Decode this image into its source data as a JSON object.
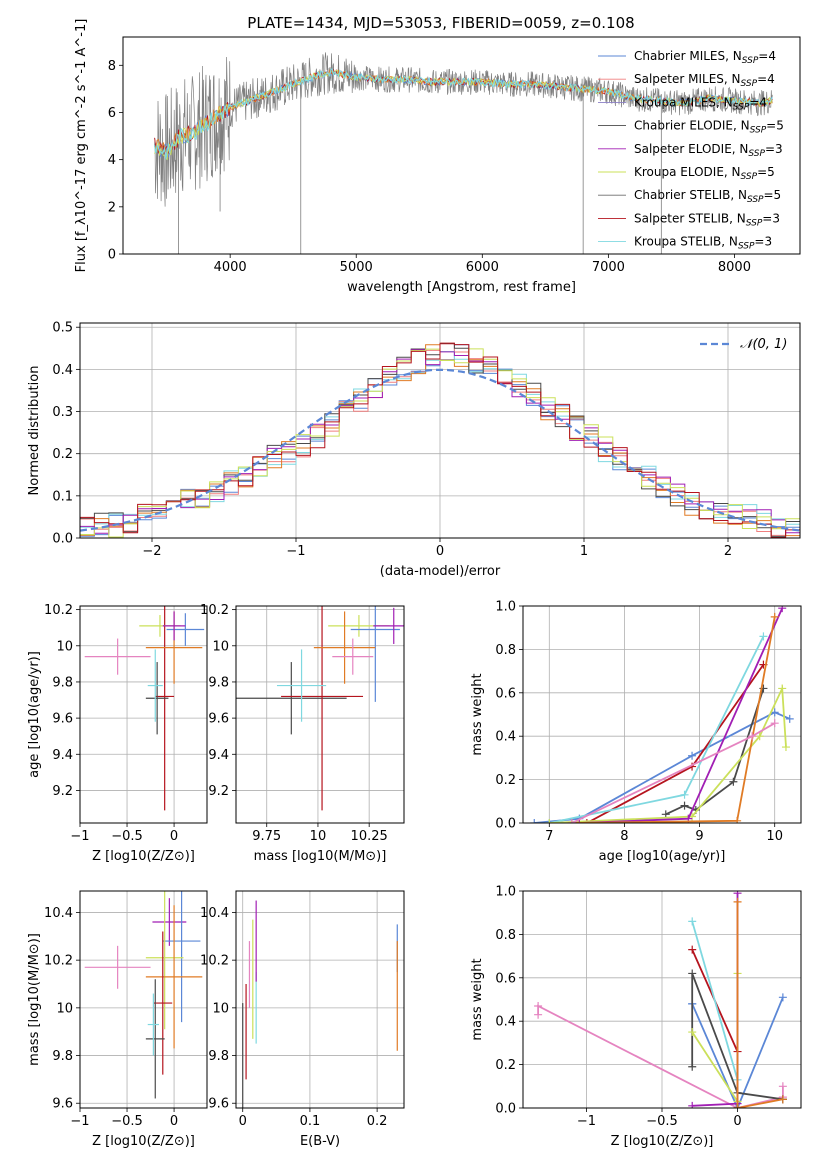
{
  "figure": {
    "title": "PLATE=1434, MJD=53053, FIBERID=0059, z=0.108"
  },
  "colors": {
    "chabrier_miles": "#5b87d6",
    "salpeter_miles": "#f07f7f",
    "kroupa_miles": "#8a7ec4",
    "chabrier_elodie": "#4a4a4a",
    "salpeter_elodie": "#a11fb4",
    "kroupa_elodie": "#cbe05a",
    "chabrier_stelib": "#6e6e6e",
    "salpeter_stelib": "#b5141e",
    "kroupa_stelib": "#7fd8e0",
    "spectrum": "#7f7f7f",
    "orange": "#e07b25",
    "pink": "#e584c0",
    "normal_curve": "#5b87d6"
  },
  "chart_data": [
    {
      "type": "line",
      "id": "spectrum",
      "xlabel": "wavelength [Angstrom, rest frame]",
      "ylabel": "Flux [f_λ10^-17 erg cm^-2 s^-1 A^-1]",
      "xlim": [
        3150,
        8520
      ],
      "ylim": [
        0,
        9.2
      ],
      "xticks": [
        4000,
        5000,
        6000,
        7000,
        8000
      ],
      "yticks": [
        0,
        2,
        4,
        6,
        8
      ],
      "legend_position": "right",
      "legend": [
        "Chabrier MILES, N_SSP=4",
        "Salpeter MILES, N_SSP=4",
        "Kroupa MILES, N_SSP=4",
        "Chabrier ELODIE, N_SSP=5",
        "Salpeter ELODIE, N_SSP=3",
        "Kroupa ELODIE, N_SSP=5",
        "Chabrier STELIB, N_SSP=5",
        "Salpeter STELIB, N_SSP=3",
        "Kroupa STELIB, N_SSP=3"
      ],
      "continuum_x": [
        3400,
        3500,
        3600,
        3700,
        3800,
        3900,
        4000,
        4100,
        4200,
        4300,
        4400,
        4500,
        4600,
        4700,
        4800,
        4900,
        5000,
        5200,
        5400,
        5600,
        5800,
        6000,
        6200,
        6400,
        6600,
        6800,
        7000,
        7200,
        7400,
        7600,
        7800,
        8000,
        8200,
        8300
      ],
      "continuum_y": [
        4.6,
        4.3,
        5.0,
        5.1,
        5.5,
        5.9,
        6.2,
        6.4,
        6.6,
        6.8,
        7.0,
        7.2,
        7.4,
        7.6,
        7.7,
        7.6,
        7.5,
        7.4,
        7.4,
        7.3,
        7.3,
        7.3,
        7.2,
        7.2,
        7.1,
        7.0,
        6.9,
        6.6,
        6.5,
        6.4,
        6.6,
        6.5,
        6.4,
        6.5
      ]
    },
    {
      "type": "line",
      "id": "residuals",
      "xlabel": "(data-model)/error",
      "ylabel": "Normed distribution",
      "xlim": [
        -2.5,
        2.5
      ],
      "ylim": [
        0,
        0.51
      ],
      "xticks": [
        -2,
        -1,
        0,
        1,
        2
      ],
      "yticks": [
        0.0,
        0.1,
        0.2,
        0.3,
        0.4,
        0.5
      ],
      "legend_position": "top-right",
      "normal_label": "𝒩(0, 1)",
      "hist_bins": [
        -2.5,
        -2.4,
        -2.3,
        -2.2,
        -2.1,
        -2.0,
        -1.9,
        -1.8,
        -1.7,
        -1.6,
        -1.5,
        -1.4,
        -1.3,
        -1.2,
        -1.1,
        -1.0,
        -0.9,
        -0.8,
        -0.7,
        -0.6,
        -0.5,
        -0.4,
        -0.3,
        -0.2,
        -0.1,
        0.0,
        0.1,
        0.2,
        0.3,
        0.4,
        0.5,
        0.6,
        0.7,
        0.8,
        0.9,
        1.0,
        1.1,
        1.2,
        1.3,
        1.4,
        1.5,
        1.6,
        1.7,
        1.8,
        1.9,
        2.0,
        2.1,
        2.2,
        2.3,
        2.4,
        2.5
      ],
      "hist_values": [
        0.02,
        0.03,
        0.03,
        0.04,
        0.05,
        0.05,
        0.07,
        0.09,
        0.1,
        0.11,
        0.13,
        0.15,
        0.17,
        0.19,
        0.2,
        0.22,
        0.24,
        0.27,
        0.3,
        0.33,
        0.36,
        0.38,
        0.4,
        0.42,
        0.43,
        0.44,
        0.43,
        0.42,
        0.4,
        0.38,
        0.36,
        0.34,
        0.31,
        0.29,
        0.26,
        0.24,
        0.21,
        0.19,
        0.16,
        0.14,
        0.12,
        0.1,
        0.08,
        0.07,
        0.06,
        0.05,
        0.05,
        0.04,
        0.03,
        0.02
      ]
    },
    {
      "type": "scatter",
      "id": "age_vs_Z",
      "xlabel": "Z [log10(Z/Z⊙)]",
      "ylabel": "age [log10(age/yr)]",
      "xlim": [
        -1.0,
        0.35
      ],
      "ylim": [
        9.02,
        10.22
      ],
      "xticks": [
        -1.0,
        -0.5,
        0.0
      ],
      "yticks": [
        9.2,
        9.4,
        9.6,
        9.8,
        10.0,
        10.2
      ],
      "points": [
        {
          "series": "chabrier_miles",
          "x": 0.12,
          "y": 10.09,
          "xerr": 0.2,
          "yerr": 0.09
        },
        {
          "series": "pink",
          "x": -0.6,
          "y": 9.94,
          "xerr": 0.35,
          "yerr": 0.1
        },
        {
          "series": "salpeter_stelib",
          "x": -0.1,
          "y": 9.72,
          "xerr": 0.1,
          "yerr": 0.63
        },
        {
          "series": "chabrier_elodie",
          "x": -0.18,
          "y": 9.71,
          "xerr": 0.12,
          "yerr": 0.2
        },
        {
          "series": "kroupa_elodie",
          "x": -0.15,
          "y": 10.11,
          "xerr": 0.22,
          "yerr": 0.06
        },
        {
          "series": "orange",
          "x": 0.0,
          "y": 9.99,
          "xerr": 0.3,
          "yerr": 0.2
        },
        {
          "series": "salpeter_elodie",
          "x": 0.0,
          "y": 10.11,
          "xerr": 0.12,
          "yerr": 0.08
        },
        {
          "series": "kroupa_stelib",
          "x": -0.2,
          "y": 9.78,
          "xerr": 0.08,
          "yerr": 0.2
        }
      ]
    },
    {
      "type": "scatter",
      "id": "age_vs_mass",
      "xlabel": "mass [log10(M/M⊙)]",
      "ylabel": "",
      "xlim": [
        9.6,
        10.42
      ],
      "ylim": [
        9.02,
        10.22
      ],
      "xticks": [
        9.75,
        10.0,
        10.25
      ],
      "yticks": [
        9.2,
        9.4,
        9.6,
        9.8,
        10.0,
        10.2
      ],
      "points": [
        {
          "series": "chabrier_elodie",
          "x": 9.87,
          "y": 9.71,
          "xerr": 0.27,
          "yerr": 0.2
        },
        {
          "series": "salpeter_stelib",
          "x": 10.02,
          "y": 9.72,
          "xerr": 0.2,
          "yerr": 0.63
        },
        {
          "series": "kroupa_stelib",
          "x": 9.92,
          "y": 9.78,
          "xerr": 0.12,
          "yerr": 0.2
        },
        {
          "series": "kroupa_elodie",
          "x": 10.2,
          "y": 10.11,
          "xerr": 0.15,
          "yerr": 0.06
        },
        {
          "series": "chabrier_miles",
          "x": 10.28,
          "y": 10.09,
          "xerr": 0.12,
          "yerr": 0.4
        },
        {
          "series": "salpeter_elodie",
          "x": 10.37,
          "y": 10.11,
          "xerr": 0.1,
          "yerr": 0.1
        },
        {
          "series": "orange",
          "x": 10.13,
          "y": 9.99,
          "xerr": 0.15,
          "yerr": 0.2
        },
        {
          "series": "pink",
          "x": 10.17,
          "y": 9.94,
          "xerr": 0.1,
          "yerr": 0.1
        }
      ]
    },
    {
      "type": "line",
      "id": "mass_weight_vs_age",
      "xlabel": "age [log10(age/yr)]",
      "ylabel": "mass weight",
      "xlim": [
        6.65,
        10.35
      ],
      "ylim": [
        0,
        1.0
      ],
      "xticks": [
        7,
        8,
        9,
        10
      ],
      "yticks": [
        0.0,
        0.2,
        0.4,
        0.6,
        0.8,
        1.0
      ],
      "series": [
        {
          "name": "chabrier_miles",
          "x": [
            6.8,
            7.4,
            8.9,
            10.0,
            10.2
          ],
          "y": [
            0.0,
            0.02,
            0.31,
            0.51,
            0.48
          ]
        },
        {
          "name": "chabrier_elodie",
          "x": [
            8.55,
            8.8,
            8.95,
            9.45,
            9.85
          ],
          "y": [
            0.04,
            0.08,
            0.06,
            0.19,
            0.62
          ]
        },
        {
          "name": "salpeter_stelib",
          "x": [
            7.5,
            8.9,
            9.85
          ],
          "y": [
            0.0,
            0.26,
            0.73
          ]
        },
        {
          "name": "kroupa_stelib",
          "x": [
            7.0,
            8.8,
            9.85
          ],
          "y": [
            0.0,
            0.13,
            0.86
          ]
        },
        {
          "name": "kroupa_elodie",
          "x": [
            7.0,
            8.9,
            9.8,
            10.1,
            10.15
          ],
          "y": [
            0.0,
            0.03,
            0.4,
            0.62,
            0.35
          ]
        },
        {
          "name": "salpeter_elodie",
          "x": [
            7.4,
            8.85,
            10.1
          ],
          "y": [
            0.0,
            0.02,
            0.99
          ]
        },
        {
          "name": "orange",
          "x": [
            7.3,
            9.5,
            10.0
          ],
          "y": [
            0.0,
            0.01,
            0.95
          ]
        },
        {
          "name": "pink",
          "x": [
            7.3,
            9.7,
            10.0
          ],
          "y": [
            0.0,
            0.4,
            0.46
          ]
        }
      ]
    },
    {
      "type": "scatter",
      "id": "mass_vs_Z",
      "xlabel": "Z [log10(Z/Z⊙)]",
      "ylabel": "mass [log10(M/M⊙)]",
      "xlim": [
        -1.0,
        0.35
      ],
      "ylim": [
        9.58,
        10.49
      ],
      "xticks": [
        -1.0,
        -0.5,
        0.0
      ],
      "yticks": [
        9.6,
        9.8,
        10.0,
        10.2,
        10.4
      ],
      "points": [
        {
          "series": "salpeter_elodie",
          "x": -0.05,
          "y": 10.36,
          "xerr": 0.18,
          "yerr": 0.1
        },
        {
          "series": "chabrier_miles",
          "x": 0.08,
          "y": 10.28,
          "xerr": 0.2,
          "yerr": 0.34
        },
        {
          "series": "kroupa_elodie",
          "x": -0.1,
          "y": 10.21,
          "xerr": 0.2,
          "yerr": 0.3
        },
        {
          "series": "pink",
          "x": -0.6,
          "y": 10.17,
          "xerr": 0.35,
          "yerr": 0.09
        },
        {
          "series": "orange",
          "x": 0.0,
          "y": 10.13,
          "xerr": 0.3,
          "yerr": 0.3
        },
        {
          "series": "salpeter_stelib",
          "x": -0.12,
          "y": 10.02,
          "xerr": 0.1,
          "yerr": 0.3
        },
        {
          "series": "chabrier_elodie",
          "x": -0.2,
          "y": 9.87,
          "xerr": 0.1,
          "yerr": 0.25
        },
        {
          "series": "kroupa_stelib",
          "x": -0.22,
          "y": 9.93,
          "xerr": 0.06,
          "yerr": 0.13
        }
      ]
    },
    {
      "type": "scatter",
      "id": "mass_vs_ebv",
      "xlabel": "E(B-V)",
      "ylabel": "",
      "xlim": [
        -0.01,
        0.24
      ],
      "ylim": [
        9.58,
        10.49
      ],
      "xticks": [
        0.0,
        0.1,
        0.2
      ],
      "yticks": [
        9.6,
        9.8,
        10.0,
        10.2,
        10.4
      ],
      "points": [
        {
          "series": "chabrier_elodie",
          "x": 0.0,
          "y": 9.8,
          "xerr": 0,
          "yerr": 0.22
        },
        {
          "series": "salpeter_stelib",
          "x": 0.005,
          "y": 9.9,
          "xerr": 0,
          "yerr": 0.2
        },
        {
          "series": "pink",
          "x": 0.01,
          "y": 10.14,
          "xerr": 0,
          "yerr": 0.14
        },
        {
          "series": "kroupa_elodie",
          "x": 0.015,
          "y": 10.12,
          "xerr": 0,
          "yerr": 0.25
        },
        {
          "series": "kroupa_stelib",
          "x": 0.02,
          "y": 10.0,
          "xerr": 0,
          "yerr": 0.15
        },
        {
          "series": "salpeter_elodie",
          "x": 0.02,
          "y": 10.28,
          "xerr": 0,
          "yerr": 0.17
        },
        {
          "series": "chabrier_miles",
          "x": 0.23,
          "y": 10.25,
          "xerr": 0,
          "yerr": 0.1
        },
        {
          "series": "orange",
          "x": 0.23,
          "y": 10.05,
          "xerr": 0,
          "yerr": 0.23
        }
      ]
    },
    {
      "type": "line",
      "id": "mass_weight_vs_Z",
      "xlabel": "Z [log10(Z/Z⊙)]",
      "ylabel": "mass weight",
      "xlim": [
        -1.42,
        0.42
      ],
      "ylim": [
        0,
        1.0
      ],
      "xticks": [
        -1.0,
        -0.5,
        0.0
      ],
      "yticks": [
        0.0,
        0.2,
        0.4,
        0.6,
        0.8,
        1.0
      ],
      "series": [
        {
          "name": "pink",
          "x": [
            -1.32,
            -1.32,
            0.0,
            0.3,
            0.3
          ],
          "y": [
            0.43,
            0.47,
            0.0,
            0.05,
            0.1
          ]
        },
        {
          "name": "chabrier_miles",
          "x": [
            -0.3,
            -0.3,
            0.0,
            0.3
          ],
          "y": [
            0.48,
            0.48,
            0.0,
            0.51
          ]
        },
        {
          "name": "chabrier_elodie",
          "x": [
            -0.3,
            -0.3,
            0.0,
            0.3,
            0.3
          ],
          "y": [
            0.19,
            0.62,
            0.07,
            0.04,
            0.04
          ]
        },
        {
          "name": "salpeter_stelib",
          "x": [
            -0.3,
            0.0,
            0.0
          ],
          "y": [
            0.73,
            0.26,
            0.0
          ]
        },
        {
          "name": "kroupa_stelib",
          "x": [
            -0.3,
            0.0,
            0.0
          ],
          "y": [
            0.86,
            0.13,
            0.0
          ]
        },
        {
          "name": "kroupa_elodie",
          "x": [
            -0.3,
            0.0,
            0.0,
            0.0
          ],
          "y": [
            0.35,
            0.03,
            0.62,
            0.0
          ]
        },
        {
          "name": "salpeter_elodie",
          "x": [
            -0.3,
            0.0,
            0.0,
            0.0
          ],
          "y": [
            0.01,
            0.02,
            0.99,
            0.0
          ]
        },
        {
          "name": "orange",
          "x": [
            0.0,
            0.0,
            0.3,
            0.0
          ],
          "y": [
            0.95,
            0.0,
            0.04,
            0.0
          ]
        }
      ]
    }
  ]
}
